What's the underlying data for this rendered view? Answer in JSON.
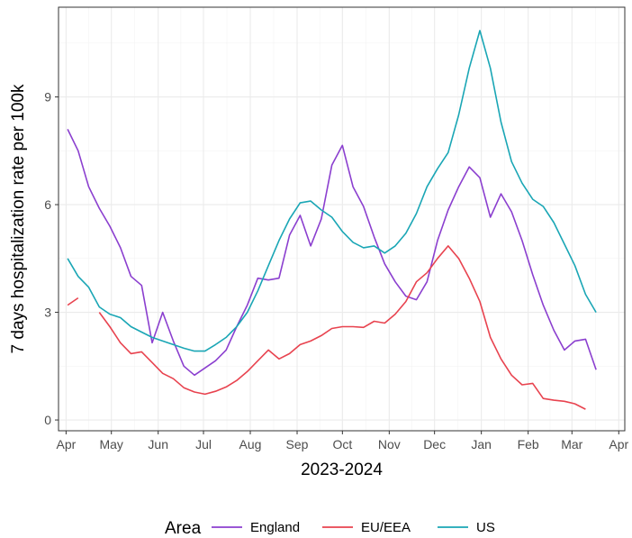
{
  "chart_data": {
    "type": "line",
    "xlabel": "2023-2024",
    "ylabel": "7 days hospitalization rate per 100k",
    "ylim": [
      -0.3,
      11.5
    ],
    "xlim": [
      "2023-03-27",
      "2024-04-05"
    ],
    "y_ticks": [
      0,
      3,
      6,
      9
    ],
    "y_tick_labels": [
      "0",
      "3",
      "6",
      "9"
    ],
    "x_ticks": [
      "2023-04-01",
      "2023-05-01",
      "2023-06-01",
      "2023-07-01",
      "2023-08-01",
      "2023-09-01",
      "2023-10-01",
      "2023-11-01",
      "2023-12-01",
      "2024-01-01",
      "2024-02-01",
      "2024-03-01",
      "2024-04-01"
    ],
    "x_tick_labels": [
      "Apr",
      "May",
      "Jun",
      "Jul",
      "Aug",
      "Sep",
      "Oct",
      "Nov",
      "Dec",
      "Jan",
      "Feb",
      "Mar",
      "Apr"
    ],
    "grid": true,
    "legend": {
      "title": "Area",
      "position": "bottom"
    },
    "series": [
      {
        "name": "England",
        "color": "#8b3fcf",
        "points": [
          [
            "2023-04-02",
            8.1
          ],
          [
            "2023-04-09",
            7.5
          ],
          [
            "2023-04-16",
            6.5
          ],
          [
            "2023-04-23",
            5.9
          ],
          [
            "2023-04-30",
            5.4
          ],
          [
            "2023-05-07",
            4.8
          ],
          [
            "2023-05-14",
            4.0
          ],
          [
            "2023-05-21",
            3.75
          ],
          [
            "2023-05-28",
            2.15
          ],
          [
            "2023-06-04",
            3.0
          ],
          [
            "2023-06-11",
            2.2
          ],
          [
            "2023-06-18",
            1.5
          ],
          [
            "2023-06-25",
            1.25
          ],
          [
            "2023-07-02",
            1.45
          ],
          [
            "2023-07-09",
            1.65
          ],
          [
            "2023-07-16",
            1.95
          ],
          [
            "2023-07-23",
            2.6
          ],
          [
            "2023-07-30",
            3.2
          ],
          [
            "2023-08-06",
            3.95
          ],
          [
            "2023-08-13",
            3.9
          ],
          [
            "2023-08-20",
            3.95
          ],
          [
            "2023-08-27",
            5.15
          ],
          [
            "2023-09-03",
            5.7
          ],
          [
            "2023-09-10",
            4.85
          ],
          [
            "2023-09-17",
            5.6
          ],
          [
            "2023-09-24",
            7.1
          ],
          [
            "2023-10-01",
            7.65
          ],
          [
            "2023-10-08",
            6.5
          ],
          [
            "2023-10-15",
            5.95
          ],
          [
            "2023-10-22",
            5.1
          ],
          [
            "2023-10-29",
            4.35
          ],
          [
            "2023-11-05",
            3.85
          ],
          [
            "2023-11-12",
            3.45
          ],
          [
            "2023-11-19",
            3.35
          ],
          [
            "2023-11-26",
            3.85
          ],
          [
            "2023-12-03",
            5.0
          ],
          [
            "2023-12-10",
            5.85
          ],
          [
            "2023-12-17",
            6.5
          ],
          [
            "2023-12-24",
            7.05
          ],
          [
            "2023-12-31",
            6.75
          ],
          [
            "2024-01-07",
            5.65
          ],
          [
            "2024-01-14",
            6.3
          ],
          [
            "2024-01-21",
            5.8
          ],
          [
            "2024-01-28",
            5.0
          ],
          [
            "2024-02-04",
            4.05
          ],
          [
            "2024-02-11",
            3.2
          ],
          [
            "2024-02-18",
            2.5
          ],
          [
            "2024-02-25",
            1.95
          ],
          [
            "2024-03-03",
            2.2
          ],
          [
            "2024-03-10",
            2.25
          ],
          [
            "2024-03-17",
            1.4
          ]
        ]
      },
      {
        "name": "EU/EEA",
        "color": "#e8434f",
        "segments": [
          [
            [
              "2023-04-02",
              3.2
            ],
            [
              "2023-04-09",
              3.4
            ]
          ],
          [
            [
              "2023-04-23",
              3.0
            ],
            [
              "2023-04-30",
              2.6
            ],
            [
              "2023-05-07",
              2.15
            ],
            [
              "2023-05-14",
              1.85
            ],
            [
              "2023-05-21",
              1.9
            ],
            [
              "2023-05-28",
              1.6
            ],
            [
              "2023-06-04",
              1.3
            ],
            [
              "2023-06-11",
              1.15
            ],
            [
              "2023-06-18",
              0.9
            ],
            [
              "2023-06-25",
              0.78
            ],
            [
              "2023-07-02",
              0.72
            ],
            [
              "2023-07-09",
              0.8
            ],
            [
              "2023-07-16",
              0.92
            ],
            [
              "2023-07-23",
              1.1
            ],
            [
              "2023-07-30",
              1.35
            ],
            [
              "2023-08-06",
              1.65
            ],
            [
              "2023-08-13",
              1.95
            ],
            [
              "2023-08-20",
              1.7
            ],
            [
              "2023-08-27",
              1.85
            ],
            [
              "2023-09-03",
              2.1
            ],
            [
              "2023-09-10",
              2.2
            ],
            [
              "2023-09-17",
              2.35
            ],
            [
              "2023-09-24",
              2.55
            ],
            [
              "2023-10-01",
              2.6
            ],
            [
              "2023-10-08",
              2.6
            ],
            [
              "2023-10-15",
              2.58
            ],
            [
              "2023-10-22",
              2.75
            ],
            [
              "2023-10-29",
              2.7
            ],
            [
              "2023-11-05",
              2.95
            ],
            [
              "2023-11-12",
              3.3
            ],
            [
              "2023-11-19",
              3.85
            ],
            [
              "2023-11-26",
              4.1
            ],
            [
              "2023-12-03",
              4.5
            ],
            [
              "2023-12-10",
              4.85
            ],
            [
              "2023-12-17",
              4.5
            ],
            [
              "2023-12-24",
              3.95
            ],
            [
              "2023-12-31",
              3.3
            ],
            [
              "2024-01-07",
              2.3
            ],
            [
              "2024-01-14",
              1.7
            ],
            [
              "2024-01-21",
              1.25
            ],
            [
              "2024-01-28",
              0.98
            ],
            [
              "2024-02-04",
              1.02
            ],
            [
              "2024-02-11",
              0.6
            ],
            [
              "2024-02-18",
              0.55
            ],
            [
              "2024-02-25",
              0.52
            ],
            [
              "2024-03-03",
              0.45
            ],
            [
              "2024-03-10",
              0.3
            ]
          ]
        ]
      },
      {
        "name": "US",
        "color": "#1aa6b5",
        "points": [
          [
            "2023-04-02",
            4.5
          ],
          [
            "2023-04-09",
            4.0
          ],
          [
            "2023-04-16",
            3.7
          ],
          [
            "2023-04-23",
            3.15
          ],
          [
            "2023-04-30",
            2.95
          ],
          [
            "2023-05-07",
            2.85
          ],
          [
            "2023-05-14",
            2.6
          ],
          [
            "2023-05-21",
            2.45
          ],
          [
            "2023-05-28",
            2.3
          ],
          [
            "2023-06-04",
            2.2
          ],
          [
            "2023-06-11",
            2.1
          ],
          [
            "2023-06-18",
            2.0
          ],
          [
            "2023-06-25",
            1.92
          ],
          [
            "2023-07-02",
            1.92
          ],
          [
            "2023-07-09",
            2.1
          ],
          [
            "2023-07-16",
            2.3
          ],
          [
            "2023-07-23",
            2.6
          ],
          [
            "2023-07-30",
            3.0
          ],
          [
            "2023-08-06",
            3.6
          ],
          [
            "2023-08-13",
            4.3
          ],
          [
            "2023-08-20",
            5.0
          ],
          [
            "2023-08-27",
            5.6
          ],
          [
            "2023-09-03",
            6.05
          ],
          [
            "2023-09-10",
            6.1
          ],
          [
            "2023-09-17",
            5.85
          ],
          [
            "2023-09-24",
            5.65
          ],
          [
            "2023-10-01",
            5.25
          ],
          [
            "2023-10-08",
            4.95
          ],
          [
            "2023-10-15",
            4.8
          ],
          [
            "2023-10-22",
            4.85
          ],
          [
            "2023-10-29",
            4.65
          ],
          [
            "2023-11-05",
            4.85
          ],
          [
            "2023-11-12",
            5.2
          ],
          [
            "2023-11-19",
            5.75
          ],
          [
            "2023-11-26",
            6.5
          ],
          [
            "2023-12-03",
            7.0
          ],
          [
            "2023-12-10",
            7.45
          ],
          [
            "2023-12-17",
            8.5
          ],
          [
            "2023-12-24",
            9.8
          ],
          [
            "2023-12-31",
            10.85
          ],
          [
            "2024-01-07",
            9.8
          ],
          [
            "2024-01-14",
            8.3
          ],
          [
            "2024-01-21",
            7.2
          ],
          [
            "2024-01-28",
            6.6
          ],
          [
            "2024-02-04",
            6.15
          ],
          [
            "2024-02-11",
            5.95
          ],
          [
            "2024-02-18",
            5.5
          ],
          [
            "2024-02-25",
            4.9
          ],
          [
            "2024-03-03",
            4.3
          ],
          [
            "2024-03-10",
            3.5
          ],
          [
            "2024-03-17",
            3.0
          ]
        ]
      }
    ]
  }
}
